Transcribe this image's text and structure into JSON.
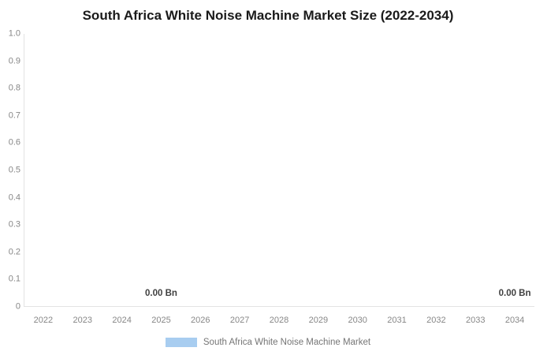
{
  "chart_data": {
    "type": "bar",
    "title": "South Africa White Noise Machine Market Size (2022-2034)",
    "categories": [
      "2022",
      "2023",
      "2024",
      "2025",
      "2026",
      "2027",
      "2028",
      "2029",
      "2030",
      "2031",
      "2032",
      "2033",
      "2034"
    ],
    "series": [
      {
        "name": "South Africa White Noise Machine Market",
        "color": "#a8cdf0",
        "values": [
          0,
          0,
          0,
          0,
          0,
          0,
          0,
          0,
          0,
          0,
          0,
          0,
          0
        ]
      }
    ],
    "value_labels": [
      {
        "text": "0.00 Bn",
        "category": "2025"
      },
      {
        "text": "0.00 Bn",
        "category": "2034"
      }
    ],
    "y_axis": {
      "min": 0,
      "max": 1,
      "tick_step": 0.1,
      "tick_labels": [
        "0",
        "0.1",
        "0.2",
        "0.3",
        "0.4",
        "0.5",
        "0.6",
        "0.7",
        "0.8",
        "0.9",
        "1.0"
      ]
    },
    "x_axis": {
      "label": ""
    },
    "ylabel": "",
    "grid": false,
    "legend": {
      "position": "bottom",
      "items": [
        {
          "label": "South Africa White Noise Machine Market",
          "color": "#a8cdf0"
        }
      ]
    },
    "colors": {
      "title_text": "#1a1a1a",
      "axis_line": "#e3e3e3",
      "tick_text": "#878787",
      "value_label_text": "#3f3f3f",
      "legend_text": "#757575",
      "background": "#ffffff"
    }
  }
}
